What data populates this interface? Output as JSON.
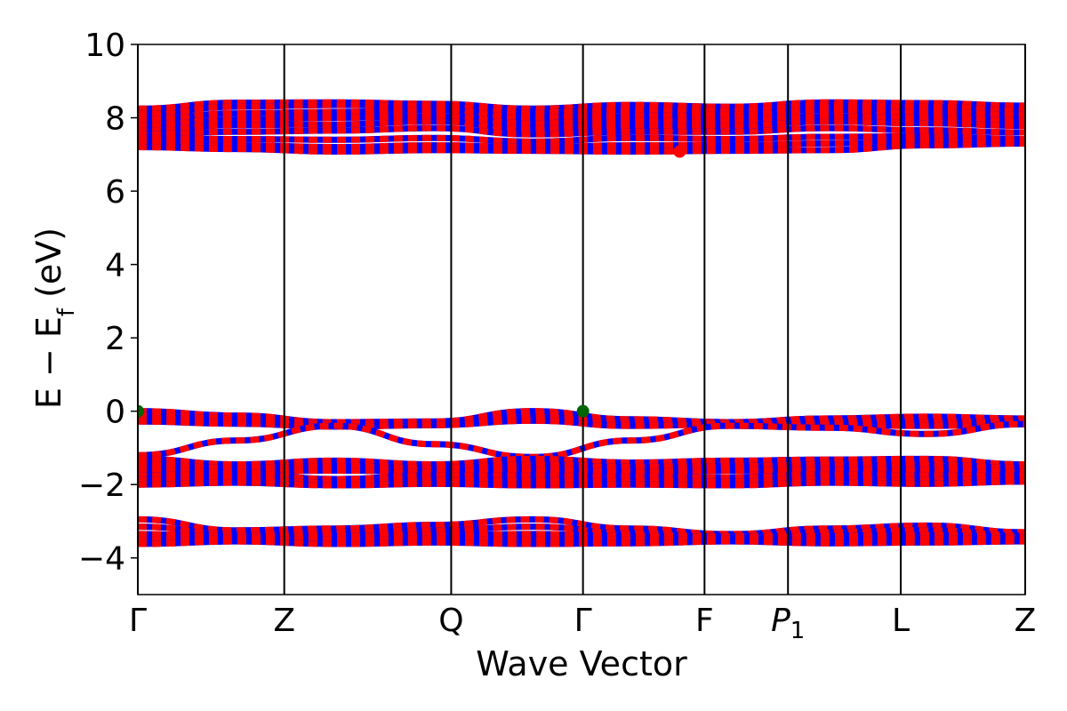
{
  "chart_data": {
    "type": "line",
    "title": "",
    "xlabel": "Wave Vector",
    "ylabel": "E − E",
    "ylabel_sub": "f",
    "ylabel_unit": " (eV)",
    "ylim": [
      -5,
      10
    ],
    "yticks": [
      -4,
      -2,
      0,
      2,
      4,
      6,
      8,
      10
    ],
    "ytick_labels": [
      "−4",
      "−2",
      "0",
      "2",
      "4",
      "6",
      "8",
      "10"
    ],
    "xlim": [
      0,
      6.06
    ],
    "kpoints": [
      {
        "label": "Γ",
        "sub": "",
        "x": 0.0
      },
      {
        "label": "Z",
        "sub": "",
        "x": 1.0
      },
      {
        "label": "Q",
        "sub": "",
        "x": 2.14
      },
      {
        "label": "Γ",
        "sub": "",
        "x": 3.04
      },
      {
        "label": "F",
        "sub": "",
        "x": 3.87
      },
      {
        "label": "P",
        "sub": "1",
        "x": 4.44
      },
      {
        "label": "L",
        "sub": "",
        "x": 5.21
      },
      {
        "label": "Z",
        "sub": "",
        "x": 6.06
      }
    ],
    "grid": false,
    "colors": {
      "spin_up": "#ff0000",
      "spin_down": "#0000ff",
      "vbm": "#006400",
      "cbm": "#ff0000"
    },
    "series": [
      {
        "y": [
          8.25,
          8.41,
          8.42,
          8.38,
          8.25,
          8.35,
          8.3,
          8.42,
          8.4,
          8.33
        ]
      },
      {
        "y": [
          8.1,
          8.3,
          8.35,
          8.32,
          8.14,
          8.22,
          8.2,
          8.35,
          8.3,
          8.22
        ]
      },
      {
        "y": [
          7.95,
          8.12,
          8.16,
          8.22,
          8.0,
          8.05,
          8.08,
          8.22,
          8.15,
          8.08
        ]
      },
      {
        "y": [
          7.8,
          7.95,
          8.0,
          8.05,
          7.85,
          7.92,
          7.92,
          8.05,
          8.0,
          7.92
        ]
      },
      {
        "y": [
          7.65,
          7.8,
          7.82,
          7.9,
          7.7,
          7.78,
          7.78,
          7.9,
          7.85,
          7.78
        ]
      },
      {
        "y": [
          7.55,
          7.62,
          7.65,
          7.72,
          7.55,
          7.62,
          7.62,
          7.72,
          7.66,
          7.6
        ]
      },
      {
        "y": [
          7.45,
          7.42,
          7.4,
          7.45,
          7.35,
          7.45,
          7.42,
          7.48,
          7.5,
          7.42
        ]
      },
      {
        "y": [
          7.3,
          7.25,
          7.2,
          7.25,
          7.2,
          7.25,
          7.25,
          7.3,
          7.35,
          7.35
        ]
      },
      {
        "y": [
          7.2,
          7.15,
          7.08,
          7.12,
          7.1,
          7.08,
          7.1,
          7.12,
          7.25,
          7.3
        ]
      },
      {
        "y": [
          0.0,
          -0.12,
          -0.3,
          -0.28,
          0.0,
          -0.22,
          -0.3,
          -0.2,
          -0.15,
          -0.2
        ]
      },
      {
        "y": [
          -0.1,
          -0.2,
          -0.32,
          -0.3,
          -0.06,
          -0.28,
          -0.32,
          -0.26,
          -0.25,
          -0.28
        ]
      },
      {
        "y": [
          -0.2,
          -0.28,
          -0.36,
          -0.34,
          -0.15,
          -0.34,
          -0.34,
          -0.32,
          -0.32,
          -0.32
        ]
      },
      {
        "y": [
          -0.28,
          -0.34,
          -0.42,
          -0.38,
          -0.26,
          -0.4,
          -0.36,
          -0.38,
          -0.4,
          -0.36
        ]
      },
      {
        "y": [
          -1.2,
          -0.8,
          -0.4,
          -0.9,
          -1.25,
          -0.8,
          -0.4,
          -0.45,
          -0.62,
          -0.35
        ]
      },
      {
        "y": [
          -1.3,
          -1.45,
          -1.35,
          -1.45,
          -1.3,
          -1.4,
          -1.35,
          -1.32,
          -1.3,
          -1.45
        ]
      },
      {
        "y": [
          -1.45,
          -1.55,
          -1.5,
          -1.55,
          -1.45,
          -1.52,
          -1.5,
          -1.45,
          -1.45,
          -1.55
        ]
      },
      {
        "y": [
          -1.6,
          -1.65,
          -1.62,
          -1.65,
          -1.6,
          -1.65,
          -1.62,
          -1.6,
          -1.6,
          -1.65
        ]
      },
      {
        "y": [
          -1.75,
          -1.7,
          -1.85,
          -1.75,
          -1.75,
          -1.78,
          -1.8,
          -1.72,
          -1.75,
          -1.75
        ]
      },
      {
        "y": [
          -1.88,
          -1.85,
          -1.95,
          -1.88,
          -1.9,
          -1.9,
          -1.92,
          -1.85,
          -1.88,
          -1.85
        ]
      },
      {
        "y": [
          -2.0,
          -1.95,
          -2.02,
          -1.98,
          -2.02,
          -2.0,
          -2.02,
          -1.95,
          -1.98,
          -1.92
        ]
      },
      {
        "y": [
          -2.95,
          -3.25,
          -3.2,
          -3.1,
          -2.95,
          -3.2,
          -3.35,
          -3.2,
          -3.12,
          -3.3
        ]
      },
      {
        "y": [
          -3.15,
          -3.35,
          -3.3,
          -3.25,
          -3.15,
          -3.32,
          -3.4,
          -3.3,
          -3.25,
          -3.38
        ]
      },
      {
        "y": [
          -3.35,
          -3.42,
          -3.4,
          -3.38,
          -3.35,
          -3.4,
          -3.42,
          -3.4,
          -3.38,
          -3.42
        ]
      },
      {
        "y": [
          -3.5,
          -3.48,
          -3.5,
          -3.48,
          -3.5,
          -3.5,
          -3.48,
          -3.5,
          -3.48,
          -3.48
        ]
      },
      {
        "y": [
          -3.62,
          -3.55,
          -3.62,
          -3.58,
          -3.62,
          -3.6,
          -3.55,
          -3.6,
          -3.58,
          -3.55
        ]
      }
    ],
    "vbm_points": [
      {
        "x": 0.0,
        "y": 0.0
      },
      {
        "x": 3.04,
        "y": 0.0
      }
    ],
    "cbm_points": [
      {
        "x": 3.7,
        "y": 7.08
      }
    ]
  }
}
